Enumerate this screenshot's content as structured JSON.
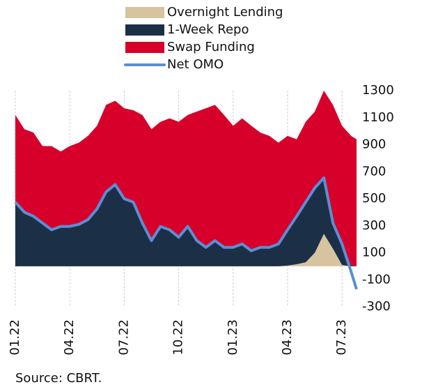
{
  "chart_data": {
    "type": "stacked-area-line",
    "source": "Source: CBRT.",
    "x": [
      0,
      0.5,
      1,
      1.5,
      2,
      2.5,
      3,
      3.5,
      4,
      4.5,
      5,
      5.5,
      6,
      6.5,
      7,
      7.5,
      8,
      8.5,
      9,
      9.5,
      10,
      10.5,
      11,
      11.5,
      12,
      12.5,
      13,
      13.5,
      14,
      14.5,
      15,
      15.5,
      16,
      16.5,
      17,
      17.5,
      18,
      18.5,
      18.8
    ],
    "xlim": [
      0,
      18.8
    ],
    "xticks": [
      {
        "value": 0,
        "label": "01.22"
      },
      {
        "value": 3,
        "label": "04.22"
      },
      {
        "value": 6,
        "label": "07.22"
      },
      {
        "value": 9,
        "label": "10.22"
      },
      {
        "value": 12,
        "label": "01.23"
      },
      {
        "value": 15,
        "label": "04.23"
      },
      {
        "value": 18,
        "label": "07.23"
      }
    ],
    "ylim": [
      -300,
      1300
    ],
    "yticks": [
      1300,
      1100,
      900,
      700,
      500,
      300,
      100,
      -100,
      -300
    ],
    "grid": "x",
    "series": [
      {
        "name": "Overnight Lending",
        "kind": "area",
        "color": "#d8c3a0",
        "values": [
          0,
          0,
          0,
          0,
          0,
          0,
          0,
          0,
          0,
          0,
          0,
          0,
          0,
          0,
          0,
          0,
          0,
          0,
          0,
          0,
          0,
          0,
          0,
          0,
          0,
          0,
          0,
          0,
          0,
          0,
          5,
          15,
          30,
          100,
          240,
          130,
          10,
          0,
          0
        ]
      },
      {
        "name": "1-Week Repo",
        "kind": "area",
        "color": "#1b2f47",
        "values": [
          475,
          400,
          370,
          320,
          270,
          295,
          295,
          310,
          345,
          425,
          550,
          605,
          500,
          475,
          320,
          190,
          295,
          270,
          215,
          295,
          190,
          140,
          190,
          140,
          140,
          165,
          115,
          140,
          140,
          165,
          265,
          355,
          445,
          480,
          415,
          190,
          155,
          10,
          0
        ]
      },
      {
        "name": "Swap Funding",
        "kind": "area",
        "color": "#d7002b",
        "values": [
          645,
          615,
          620,
          570,
          620,
          555,
          595,
          605,
          620,
          615,
          645,
          620,
          670,
          680,
          800,
          825,
          775,
          825,
          855,
          825,
          955,
          1030,
          1005,
          980,
          900,
          930,
          925,
          850,
          825,
          750,
          695,
          570,
          595,
          565,
          645,
          875,
          875,
          955,
          940
        ]
      },
      {
        "name": "Net OMO",
        "kind": "line",
        "color": "#5b8fd4",
        "values": [
          475,
          400,
          370,
          320,
          270,
          295,
          295,
          310,
          345,
          425,
          550,
          605,
          500,
          475,
          320,
          190,
          295,
          270,
          215,
          295,
          190,
          140,
          190,
          140,
          140,
          165,
          115,
          140,
          140,
          165,
          270,
          370,
          475,
          580,
          655,
          320,
          165,
          -40,
          -170
        ]
      }
    ]
  }
}
